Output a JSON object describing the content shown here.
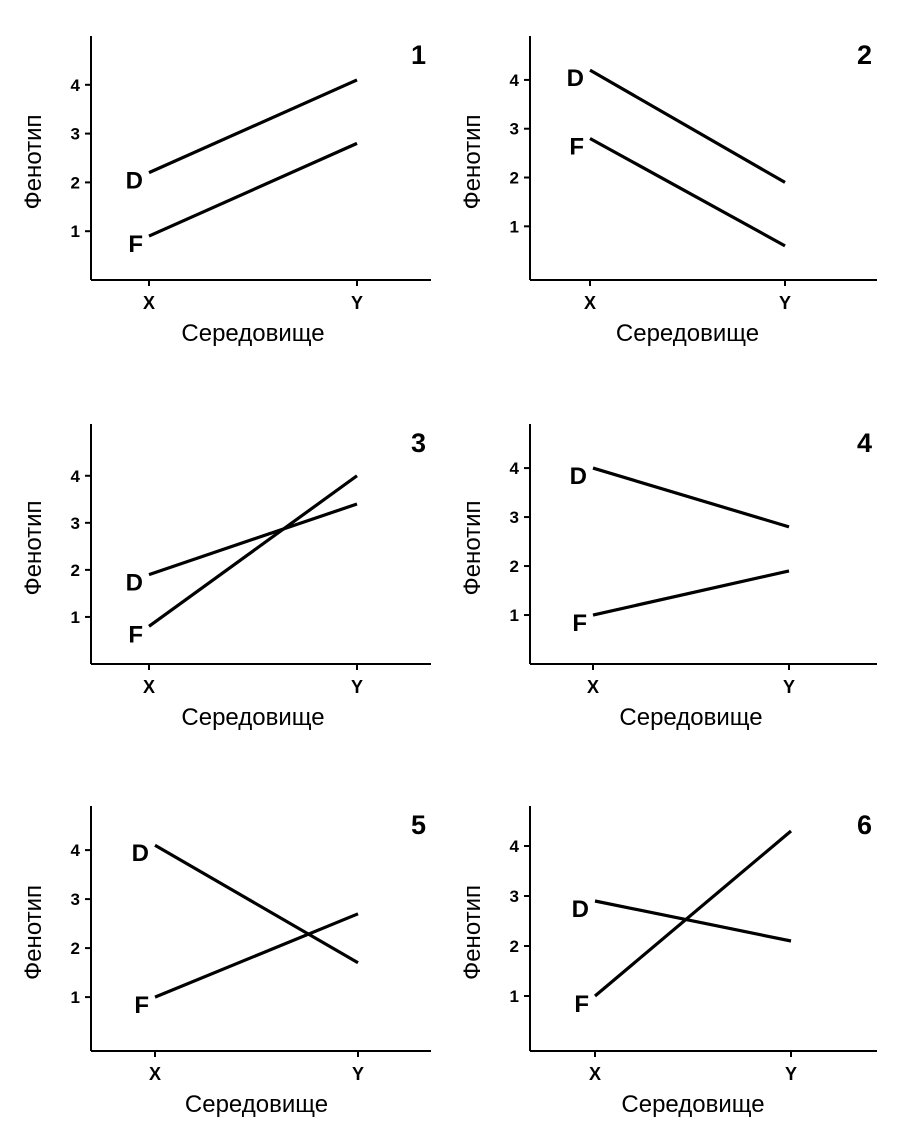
{
  "chart_data": [
    {
      "type": "line",
      "title": "1",
      "xlabel": "Середовище",
      "ylabel": "Фенотип",
      "categories": [
        "X",
        "Y"
      ],
      "yticks": [
        1,
        2,
        3,
        4
      ],
      "ylim": [
        0,
        5
      ],
      "grid": false,
      "series": [
        {
          "name": "D",
          "values": [
            2.2,
            4.1
          ]
        },
        {
          "name": "F",
          "values": [
            0.9,
            2.8
          ]
        }
      ]
    },
    {
      "type": "line",
      "title": "2",
      "xlabel": "Середовище",
      "ylabel": "Фенотип",
      "categories": [
        "X",
        "Y"
      ],
      "yticks": [
        1,
        2,
        3,
        4
      ],
      "ylim": [
        -0.1,
        4.9
      ],
      "grid": false,
      "series": [
        {
          "name": "D",
          "values": [
            4.2,
            1.9
          ]
        },
        {
          "name": "F",
          "values": [
            2.8,
            0.6
          ]
        }
      ]
    },
    {
      "type": "line",
      "title": "3",
      "xlabel": "Середовище",
      "ylabel": "Фенотип",
      "categories": [
        "X",
        "Y"
      ],
      "yticks": [
        1,
        2,
        3,
        4
      ],
      "ylim": [
        0,
        5.1
      ],
      "grid": false,
      "series": [
        {
          "name": "D",
          "values": [
            1.9,
            3.4
          ]
        },
        {
          "name": "F",
          "values": [
            0.8,
            4.0
          ]
        }
      ]
    },
    {
      "type": "line",
      "title": "4",
      "xlabel": "Середовище",
      "ylabel": "Фенотип",
      "categories": [
        "X",
        "Y"
      ],
      "yticks": [
        1,
        2,
        3,
        4
      ],
      "ylim": [
        0,
        4.9
      ],
      "grid": false,
      "series": [
        {
          "name": "D",
          "values": [
            4.0,
            2.8
          ]
        },
        {
          "name": "F",
          "values": [
            1.0,
            1.9
          ]
        }
      ]
    },
    {
      "type": "line",
      "title": "5",
      "xlabel": "Середовище",
      "ylabel": "Фенотип",
      "categories": [
        "X",
        "Y"
      ],
      "yticks": [
        1,
        2,
        3,
        4
      ],
      "ylim": [
        -0.1,
        4.9
      ],
      "grid": false,
      "series": [
        {
          "name": "D",
          "values": [
            4.1,
            1.7
          ]
        },
        {
          "name": "F",
          "values": [
            1.0,
            2.7
          ]
        }
      ]
    },
    {
      "type": "line",
      "title": "6",
      "xlabel": "Середовище",
      "ylabel": "Фенотип",
      "categories": [
        "X",
        "Y"
      ],
      "yticks": [
        1,
        2,
        3,
        4
      ],
      "ylim": [
        -0.1,
        4.8
      ],
      "grid": false,
      "series": [
        {
          "name": "D",
          "values": [
            2.9,
            2.1
          ]
        },
        {
          "name": "F",
          "values": [
            1.0,
            4.3
          ]
        }
      ]
    }
  ]
}
